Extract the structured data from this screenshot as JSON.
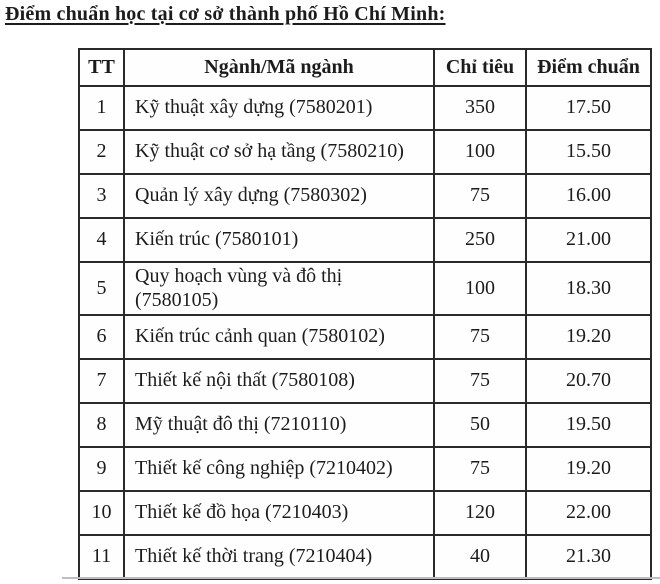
{
  "title": "Điểm chuẩn học tại cơ sở thành phố Hồ Chí Minh:",
  "table": {
    "headers": [
      "TT",
      "Ngành/Mã ngành",
      "Chỉ tiêu",
      "Điểm chuẩn"
    ],
    "rows": [
      {
        "tt": "1",
        "nganh": "Kỹ thuật xây dựng (7580201)",
        "chi_tieu": "350",
        "diem_chuan": "17.50"
      },
      {
        "tt": "2",
        "nganh": "Kỹ thuật cơ sở hạ tầng (7580210)",
        "chi_tieu": "100",
        "diem_chuan": "15.50"
      },
      {
        "tt": "3",
        "nganh": "Quản lý xây dựng (7580302)",
        "chi_tieu": "75",
        "diem_chuan": "16.00"
      },
      {
        "tt": "4",
        "nganh": "Kiến trúc (7580101)",
        "chi_tieu": "250",
        "diem_chuan": "21.00"
      },
      {
        "tt": "5",
        "nganh": "Quy hoạch vùng và đô thị (7580105)",
        "chi_tieu": "100",
        "diem_chuan": "18.30"
      },
      {
        "tt": "6",
        "nganh": "Kiến trúc cảnh quan (7580102)",
        "chi_tieu": "75",
        "diem_chuan": "19.20"
      },
      {
        "tt": "7",
        "nganh": "Thiết kế nội thất (7580108)",
        "chi_tieu": "75",
        "diem_chuan": "20.70"
      },
      {
        "tt": "8",
        "nganh": "Mỹ thuật đô thị (7210110)",
        "chi_tieu": "50",
        "diem_chuan": "19.50"
      },
      {
        "tt": "9",
        "nganh": "Thiết kế công nghiệp (7210402)",
        "chi_tieu": "75",
        "diem_chuan": "19.20"
      },
      {
        "tt": "10",
        "nganh": "Thiết kế đồ họa (7210403)",
        "chi_tieu": "120",
        "diem_chuan": "22.00"
      },
      {
        "tt": "11",
        "nganh": "Thiết kế thời trang (7210404)",
        "chi_tieu": "40",
        "diem_chuan": "21.30"
      }
    ]
  }
}
